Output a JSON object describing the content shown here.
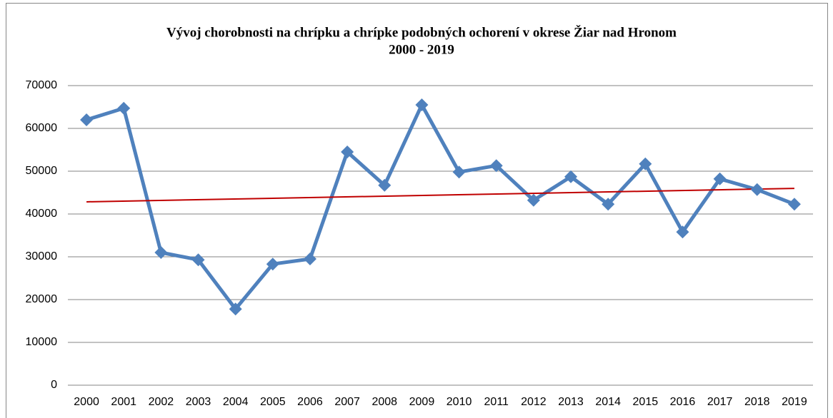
{
  "chart_data": {
    "type": "line",
    "title": "Vývoj  chorobnosti na chrípku a chrípke podobných ochorení v okrese Žiar nad Hronom",
    "subtitle": "2000 - 2019",
    "categories": [
      "2000",
      "2001",
      "2002",
      "2003",
      "2004",
      "2005",
      "2006",
      "2007",
      "2008",
      "2009",
      "2010",
      "2011",
      "2012",
      "2013",
      "2014",
      "2015",
      "2016",
      "2017",
      "2018",
      "2019"
    ],
    "series": [
      {
        "color": "#4f81bd",
        "values": [
          62000,
          64700,
          31000,
          29300,
          17800,
          28300,
          29500,
          54500,
          46700,
          65500,
          49800,
          51300,
          43200,
          48700,
          42300,
          51700,
          35800,
          48200,
          45700,
          42300
        ]
      }
    ],
    "trendline": {
      "color": "#c00000"
    },
    "ylim": [
      0,
      70000
    ],
    "yticks": [
      0,
      10000,
      20000,
      30000,
      40000,
      50000,
      60000,
      70000
    ],
    "grid": true
  }
}
